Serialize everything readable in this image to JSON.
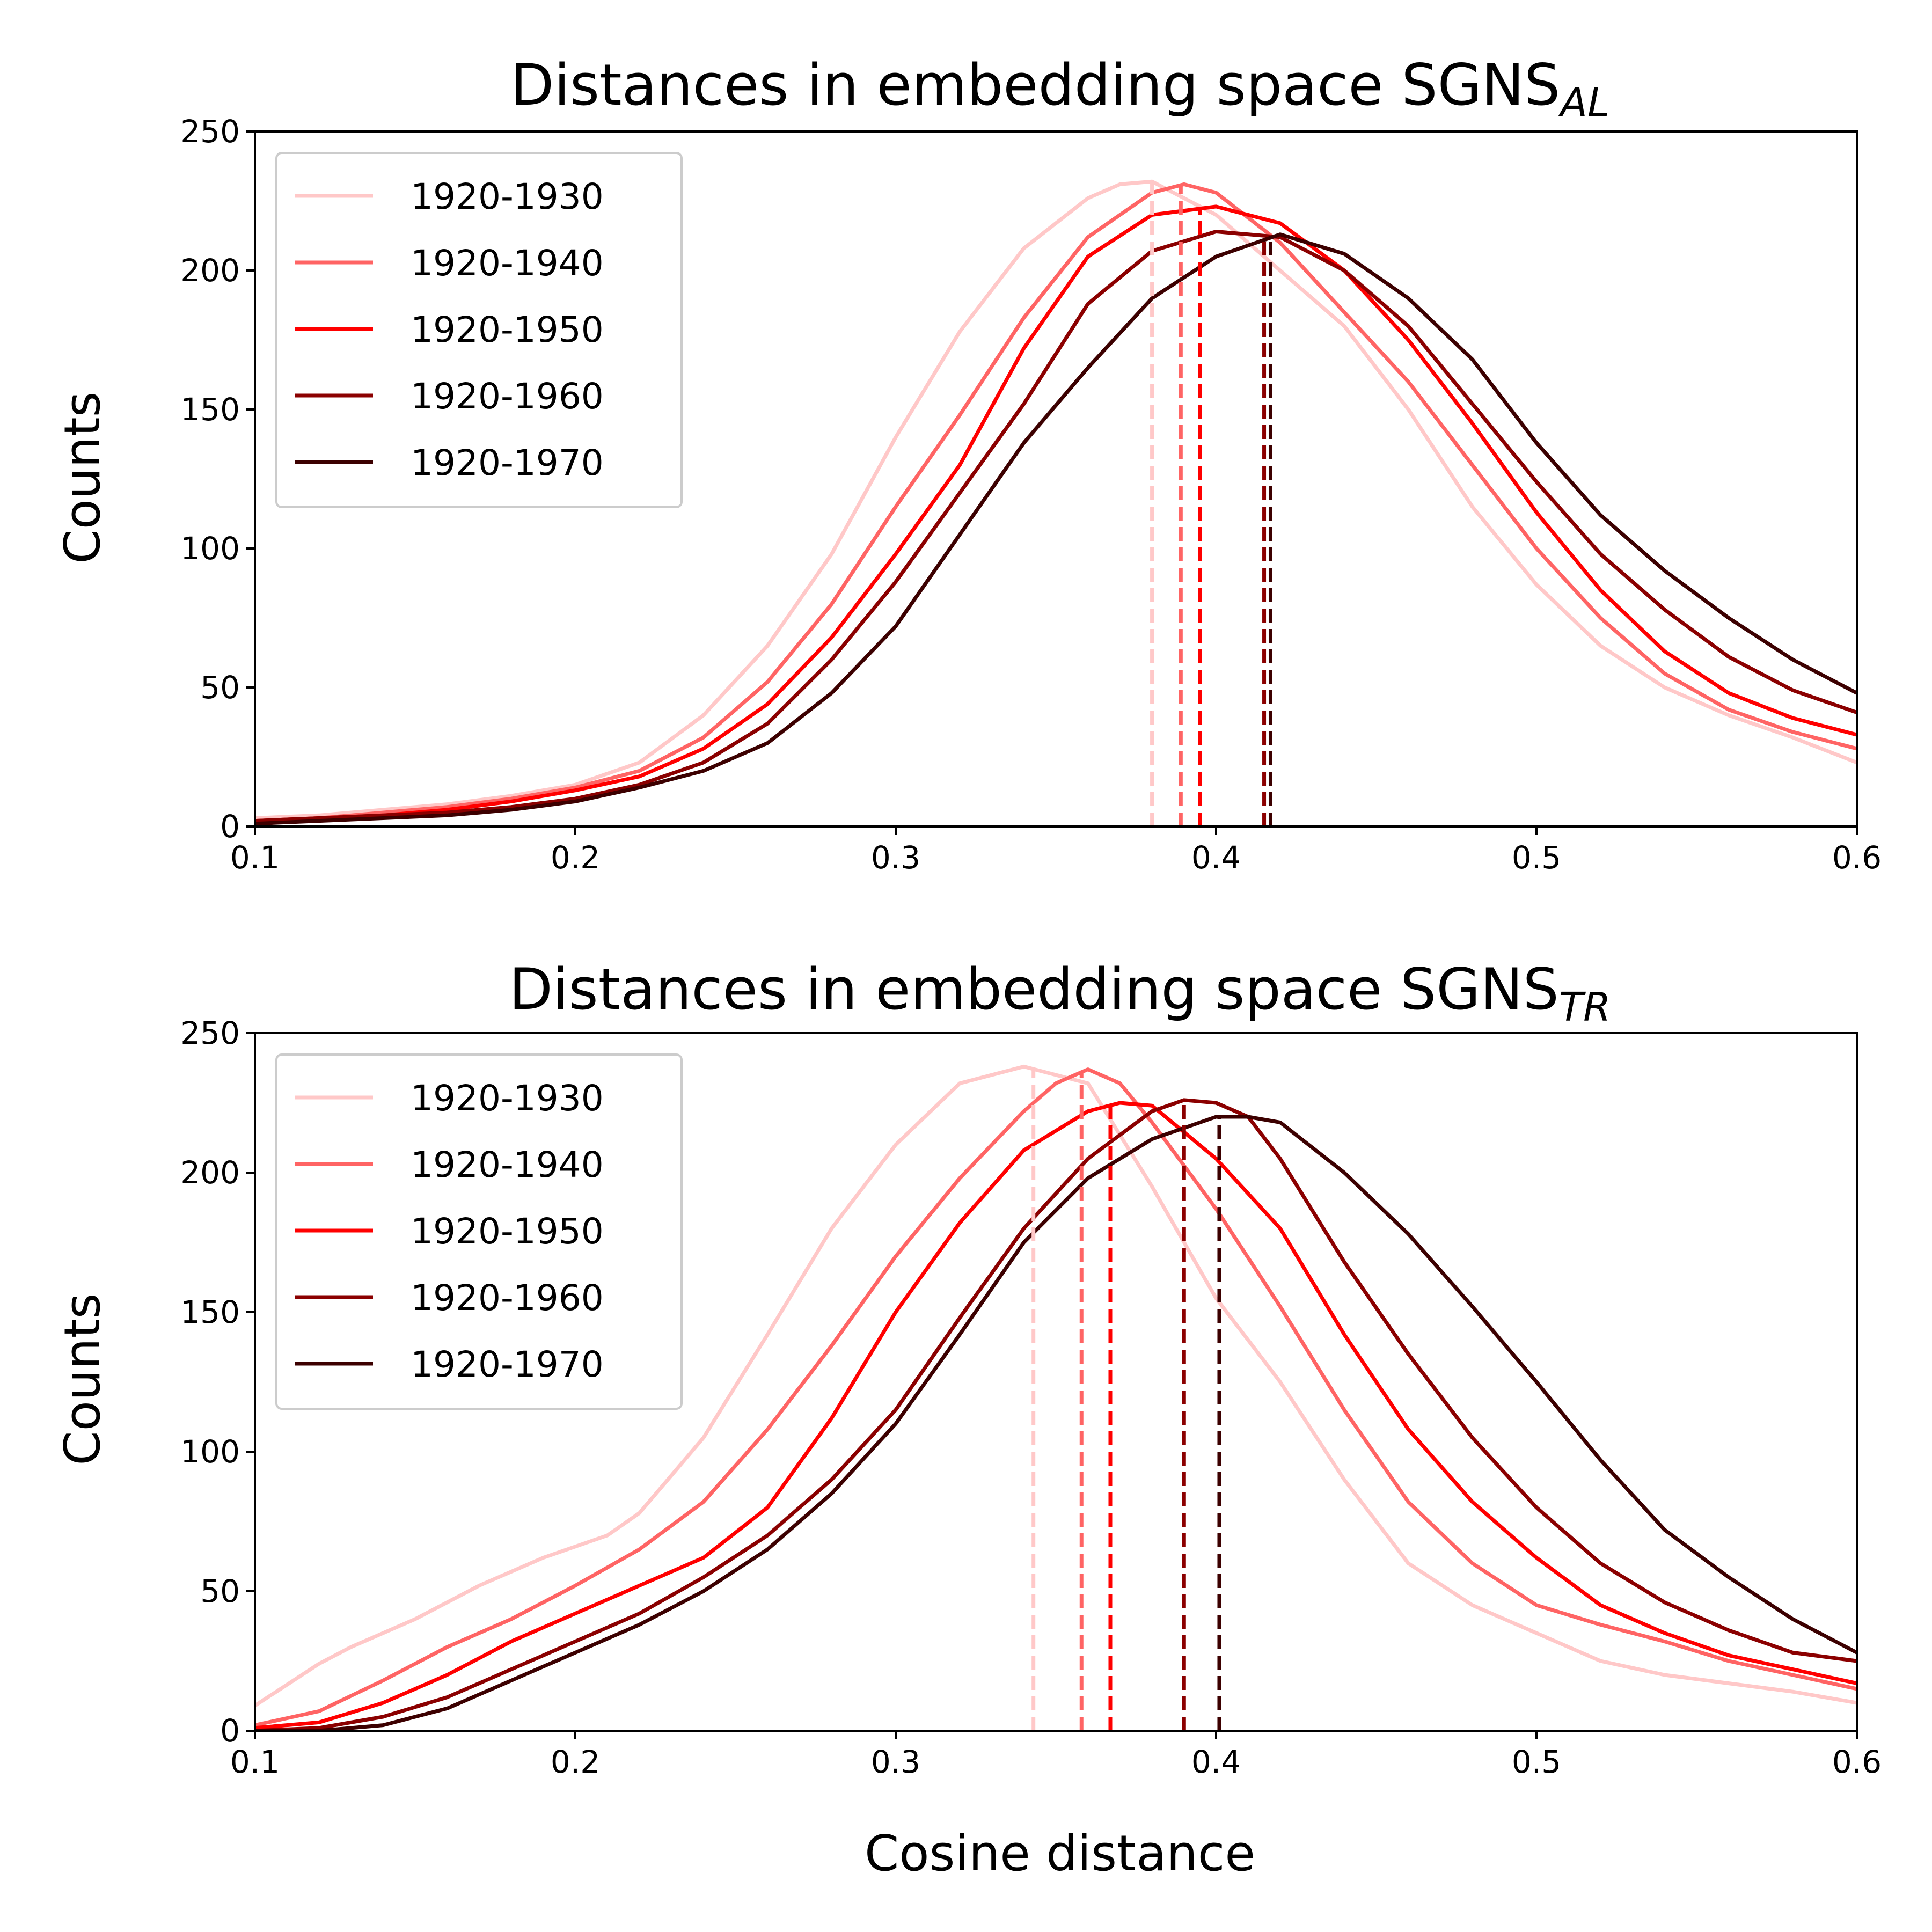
{
  "chart_data": [
    {
      "type": "line",
      "title": "Distances in embedding space SGNS",
      "title_subscript": "AL",
      "xlabel": "",
      "ylabel": "Counts",
      "xlim": [
        0.1,
        0.6
      ],
      "ylim": [
        0,
        250
      ],
      "xticks": [
        "0.1",
        "0.2",
        "0.3",
        "0.4",
        "0.5",
        "0.6"
      ],
      "yticks": [
        "0",
        "50",
        "100",
        "150",
        "200",
        "250"
      ],
      "legend_position": "top-left",
      "series": [
        {
          "name": "1920-1930",
          "color": "#ffc8c8",
          "mean": 0.38,
          "x": [
            0.1,
            0.12,
            0.14,
            0.16,
            0.18,
            0.2,
            0.22,
            0.24,
            0.26,
            0.28,
            0.3,
            0.32,
            0.34,
            0.36,
            0.37,
            0.38,
            0.4,
            0.42,
            0.44,
            0.46,
            0.48,
            0.5,
            0.52,
            0.54,
            0.56,
            0.58,
            0.6
          ],
          "y": [
            3,
            4,
            6,
            8,
            11,
            15,
            23,
            40,
            65,
            98,
            140,
            178,
            208,
            226,
            231,
            232,
            220,
            200,
            180,
            150,
            115,
            87,
            65,
            50,
            40,
            32,
            23
          ]
        },
        {
          "name": "1920-1940",
          "color": "#ff6464",
          "mean": 0.389,
          "x": [
            0.1,
            0.12,
            0.14,
            0.16,
            0.18,
            0.2,
            0.22,
            0.24,
            0.26,
            0.28,
            0.3,
            0.32,
            0.34,
            0.36,
            0.38,
            0.39,
            0.4,
            0.42,
            0.44,
            0.46,
            0.48,
            0.5,
            0.52,
            0.54,
            0.56,
            0.58,
            0.6
          ],
          "y": [
            2,
            3,
            5,
            7,
            10,
            14,
            20,
            32,
            52,
            80,
            115,
            148,
            183,
            212,
            228,
            231,
            228,
            210,
            185,
            160,
            130,
            100,
            75,
            55,
            42,
            34,
            28
          ]
        },
        {
          "name": "1920-1950",
          "color": "#ff0000",
          "mean": 0.395,
          "x": [
            0.1,
            0.12,
            0.14,
            0.16,
            0.18,
            0.2,
            0.22,
            0.24,
            0.26,
            0.28,
            0.3,
            0.32,
            0.34,
            0.36,
            0.38,
            0.4,
            0.42,
            0.44,
            0.46,
            0.48,
            0.5,
            0.52,
            0.54,
            0.56,
            0.58,
            0.6
          ],
          "y": [
            2,
            3,
            4,
            6,
            9,
            13,
            18,
            28,
            44,
            68,
            98,
            130,
            172,
            205,
            220,
            223,
            217,
            200,
            175,
            145,
            113,
            85,
            63,
            48,
            39,
            33
          ]
        },
        {
          "name": "1920-1960",
          "color": "#8b0000",
          "mean": 0.415,
          "x": [
            0.1,
            0.12,
            0.14,
            0.16,
            0.18,
            0.2,
            0.22,
            0.24,
            0.26,
            0.28,
            0.3,
            0.32,
            0.34,
            0.36,
            0.38,
            0.4,
            0.42,
            0.44,
            0.46,
            0.48,
            0.5,
            0.52,
            0.54,
            0.56,
            0.58,
            0.6
          ],
          "y": [
            2,
            3,
            4,
            5,
            7,
            10,
            15,
            23,
            37,
            60,
            88,
            120,
            152,
            188,
            207,
            214,
            212,
            200,
            180,
            152,
            124,
            98,
            78,
            61,
            49,
            41
          ]
        },
        {
          "name": "1920-1970",
          "color": "#3c0000",
          "mean": 0.417,
          "x": [
            0.1,
            0.12,
            0.14,
            0.16,
            0.18,
            0.2,
            0.22,
            0.24,
            0.26,
            0.28,
            0.3,
            0.32,
            0.34,
            0.36,
            0.38,
            0.4,
            0.42,
            0.44,
            0.46,
            0.48,
            0.5,
            0.52,
            0.54,
            0.56,
            0.58,
            0.6
          ],
          "y": [
            1,
            2,
            3,
            4,
            6,
            9,
            14,
            20,
            30,
            48,
            72,
            105,
            138,
            165,
            190,
            205,
            213,
            206,
            190,
            168,
            138,
            112,
            92,
            75,
            60,
            48
          ]
        }
      ]
    },
    {
      "type": "line",
      "title": "Distances in embedding space SGNS",
      "title_subscript": "TR",
      "xlabel": "Cosine distance",
      "ylabel": "Counts",
      "xlim": [
        0.1,
        0.6
      ],
      "ylim": [
        0,
        250
      ],
      "xticks": [
        "0.1",
        "0.2",
        "0.3",
        "0.4",
        "0.5",
        "0.6"
      ],
      "yticks": [
        "0",
        "50",
        "100",
        "150",
        "200",
        "250"
      ],
      "legend_position": "top-left",
      "series": [
        {
          "name": "1920-1930",
          "color": "#ffc8c8",
          "mean": 0.343,
          "x": [
            0.1,
            0.12,
            0.13,
            0.15,
            0.17,
            0.19,
            0.21,
            0.22,
            0.24,
            0.26,
            0.28,
            0.3,
            0.32,
            0.34,
            0.36,
            0.38,
            0.4,
            0.42,
            0.44,
            0.46,
            0.48,
            0.5,
            0.52,
            0.54,
            0.56,
            0.58,
            0.6
          ],
          "y": [
            9,
            24,
            30,
            40,
            52,
            62,
            70,
            78,
            105,
            142,
            180,
            210,
            232,
            238,
            232,
            195,
            155,
            125,
            90,
            60,
            45,
            35,
            25,
            20,
            17,
            14,
            10
          ]
        },
        {
          "name": "1920-1940",
          "color": "#ff6464",
          "mean": 0.358,
          "x": [
            0.1,
            0.12,
            0.14,
            0.16,
            0.18,
            0.2,
            0.22,
            0.24,
            0.26,
            0.28,
            0.3,
            0.32,
            0.34,
            0.35,
            0.36,
            0.37,
            0.38,
            0.4,
            0.42,
            0.44,
            0.46,
            0.48,
            0.5,
            0.52,
            0.54,
            0.56,
            0.58,
            0.6
          ],
          "y": [
            2,
            7,
            18,
            30,
            40,
            52,
            65,
            82,
            108,
            138,
            170,
            198,
            222,
            232,
            237,
            232,
            218,
            187,
            152,
            115,
            82,
            60,
            45,
            38,
            32,
            25,
            20,
            15
          ]
        },
        {
          "name": "1920-1950",
          "color": "#ff0000",
          "mean": 0.367,
          "x": [
            0.1,
            0.12,
            0.14,
            0.16,
            0.18,
            0.2,
            0.22,
            0.24,
            0.26,
            0.28,
            0.3,
            0.32,
            0.34,
            0.36,
            0.37,
            0.38,
            0.4,
            0.42,
            0.44,
            0.46,
            0.48,
            0.5,
            0.52,
            0.54,
            0.56,
            0.58,
            0.6
          ],
          "y": [
            1,
            3,
            10,
            20,
            32,
            42,
            52,
            62,
            80,
            112,
            150,
            182,
            208,
            222,
            225,
            224,
            205,
            180,
            142,
            108,
            82,
            62,
            45,
            35,
            27,
            22,
            17
          ]
        },
        {
          "name": "1920-1960",
          "color": "#8b0000",
          "mean": 0.39,
          "x": [
            0.1,
            0.12,
            0.14,
            0.16,
            0.18,
            0.2,
            0.22,
            0.24,
            0.26,
            0.28,
            0.3,
            0.32,
            0.34,
            0.36,
            0.38,
            0.39,
            0.4,
            0.41,
            0.42,
            0.44,
            0.46,
            0.48,
            0.5,
            0.52,
            0.54,
            0.56,
            0.58,
            0.6
          ],
          "y": [
            0,
            1,
            5,
            12,
            22,
            32,
            42,
            55,
            70,
            90,
            115,
            148,
            180,
            205,
            222,
            226,
            225,
            220,
            205,
            168,
            135,
            105,
            80,
            60,
            46,
            36,
            28,
            25
          ]
        },
        {
          "name": "1920-1970",
          "color": "#3c0000",
          "mean": 0.401,
          "x": [
            0.1,
            0.12,
            0.14,
            0.16,
            0.18,
            0.2,
            0.22,
            0.24,
            0.26,
            0.28,
            0.3,
            0.32,
            0.34,
            0.36,
            0.38,
            0.4,
            0.41,
            0.42,
            0.44,
            0.46,
            0.48,
            0.5,
            0.52,
            0.54,
            0.56,
            0.58,
            0.6
          ],
          "y": [
            0,
            0,
            2,
            8,
            18,
            28,
            38,
            50,
            65,
            85,
            110,
            142,
            175,
            198,
            212,
            220,
            220,
            218,
            200,
            178,
            152,
            125,
            97,
            72,
            55,
            40,
            28
          ]
        }
      ]
    }
  ]
}
